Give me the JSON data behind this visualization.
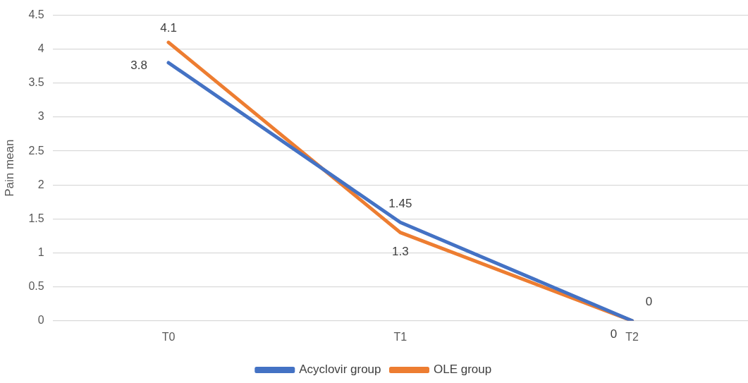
{
  "chart_data": {
    "type": "line",
    "ylabel": "Pain mean",
    "categories": [
      "T0",
      "T1",
      "T2"
    ],
    "series": [
      {
        "name": "Acyclovir group",
        "color": "#4472c4",
        "values": [
          3.8,
          1.45,
          0
        ]
      },
      {
        "name": "OLE group",
        "color": "#ed7d31",
        "values": [
          4.1,
          1.3,
          0
        ]
      }
    ],
    "ylim": [
      0,
      4.5
    ],
    "yticks": [
      0,
      0.5,
      1,
      1.5,
      2,
      2.5,
      3,
      3.5,
      4,
      4.5
    ],
    "grid": "y",
    "legend": "bottom",
    "marker": "none",
    "line_style": "solid",
    "data_labels": true
  }
}
